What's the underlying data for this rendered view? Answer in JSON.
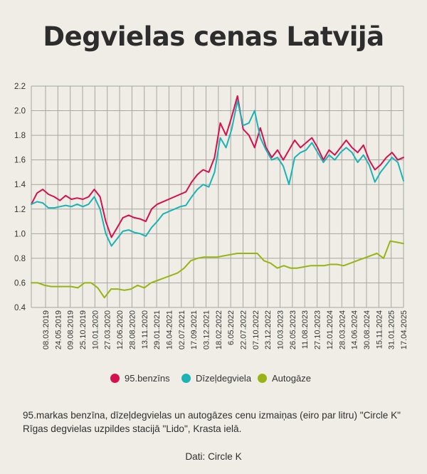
{
  "title": "Degvielas cenas Latvijā",
  "caption": "95.markas benzīna, dīzeļdegvielas un autogāzes cenu izmaiņas (eiro par litru) \"Circle K\" Rīgas degvielas uzpildes stacijā \"Lido\", Krasta ielā.",
  "source": "Dati: Circle K",
  "chart_data": {
    "type": "line",
    "title": "Degvielas cenas Latvijā",
    "xlabel": "",
    "ylabel": "",
    "ylim": [
      0.4,
      2.2
    ],
    "yticks": [
      "0.4",
      "0.6",
      "0.8",
      "1.0",
      "1.2",
      "1.4",
      "1.6",
      "1.8",
      "2.0",
      "2.2"
    ],
    "xticks": [
      "08.03.2019",
      "24.05.2019",
      "09.08.2019",
      "25.10.2019",
      "10.01.2020",
      "27.03.2020",
      "12.06.2020",
      "28.08.2020",
      "13.11.2020",
      "29.01.2021",
      "16.04.2021",
      "02.07.2021",
      "17.09.2021",
      "03.12.2021",
      "18.02.2022",
      "6.05.2022",
      "22.07.2022",
      "07.10.2022",
      "23.12.2022",
      "10.03.2023",
      "26.05.2023",
      "11.08.2023",
      "27.10.2023",
      "12.01.2024",
      "28.03.2024",
      "14.06.2024",
      "30.08.2024",
      "15.11.2024",
      "31.01.2025",
      "17.04.2025"
    ],
    "grid": true,
    "legend_position": "bottom",
    "series": [
      {
        "name": "95.benzīns",
        "color": "#d6104f",
        "values": [
          1.24,
          1.33,
          1.36,
          1.32,
          1.3,
          1.27,
          1.31,
          1.28,
          1.29,
          1.28,
          1.3,
          1.36,
          1.3,
          1.1,
          0.97,
          1.05,
          1.13,
          1.15,
          1.13,
          1.12,
          1.1,
          1.2,
          1.24,
          1.26,
          1.28,
          1.3,
          1.32,
          1.34,
          1.42,
          1.48,
          1.52,
          1.5,
          1.62,
          1.9,
          1.8,
          1.95,
          2.12,
          1.85,
          1.8,
          1.7,
          1.86,
          1.7,
          1.62,
          1.68,
          1.6,
          1.68,
          1.76,
          1.7,
          1.74,
          1.78,
          1.7,
          1.6,
          1.68,
          1.64,
          1.7,
          1.76,
          1.7,
          1.66,
          1.72,
          1.6,
          1.52,
          1.56,
          1.62,
          1.66,
          1.6,
          1.62
        ]
      },
      {
        "name": "Dīzeļdegviela",
        "color": "#1bb3b5",
        "values": [
          1.24,
          1.26,
          1.25,
          1.21,
          1.21,
          1.22,
          1.23,
          1.22,
          1.24,
          1.22,
          1.24,
          1.3,
          1.2,
          1.0,
          0.9,
          0.96,
          1.02,
          1.03,
          1.01,
          1.0,
          0.98,
          1.05,
          1.1,
          1.16,
          1.18,
          1.2,
          1.22,
          1.23,
          1.3,
          1.36,
          1.4,
          1.38,
          1.5,
          1.78,
          1.7,
          1.85,
          2.08,
          1.88,
          1.9,
          2.0,
          1.78,
          1.68,
          1.6,
          1.62,
          1.55,
          1.4,
          1.62,
          1.66,
          1.68,
          1.74,
          1.66,
          1.58,
          1.64,
          1.6,
          1.66,
          1.7,
          1.66,
          1.58,
          1.64,
          1.56,
          1.42,
          1.5,
          1.56,
          1.62,
          1.58,
          1.43
        ]
      },
      {
        "name": "Autogāze",
        "color": "#98b412",
        "values": [
          0.6,
          0.6,
          0.58,
          0.57,
          0.57,
          0.57,
          0.57,
          0.56,
          0.6,
          0.6,
          0.56,
          0.48,
          0.55,
          0.55,
          0.54,
          0.55,
          0.58,
          0.56,
          0.6,
          0.62,
          0.64,
          0.66,
          0.68,
          0.72,
          0.78,
          0.8,
          0.81,
          0.81,
          0.81,
          0.82,
          0.83,
          0.84,
          0.84,
          0.84,
          0.84,
          0.78,
          0.76,
          0.72,
          0.74,
          0.72,
          0.72,
          0.73,
          0.74,
          0.74,
          0.74,
          0.75,
          0.75,
          0.74,
          0.76,
          0.78,
          0.8,
          0.82,
          0.84,
          0.8,
          0.94,
          0.93,
          0.92
        ]
      }
    ]
  }
}
